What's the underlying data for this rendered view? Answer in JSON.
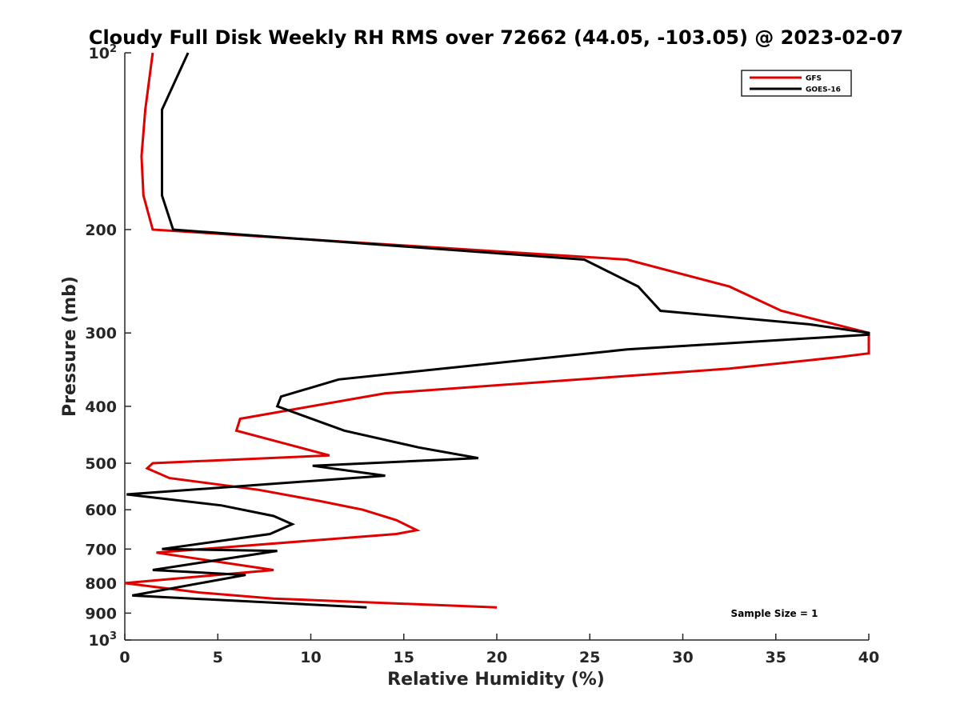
{
  "chart_data": {
    "type": "line",
    "title": "Cloudy Full Disk Weekly RH RMS over 72662 (44.05, -103.05) @ 2023-02-07",
    "xlabel": "Relative Humidity (%)",
    "ylabel": "Pressure (mb)",
    "xlim": [
      0,
      40
    ],
    "ylim": [
      100,
      1000
    ],
    "y_scale": "log",
    "y_reversed": true,
    "x_ticks": [
      0,
      5,
      10,
      15,
      20,
      25,
      30,
      35,
      40
    ],
    "y_ticks": [
      {
        "value": 100,
        "base": "10",
        "exp": "2"
      },
      {
        "value": 200,
        "label": "200"
      },
      {
        "value": 300,
        "label": "300"
      },
      {
        "value": 400,
        "label": "400"
      },
      {
        "value": 500,
        "label": "500"
      },
      {
        "value": 600,
        "label": "600"
      },
      {
        "value": 700,
        "label": "700"
      },
      {
        "value": 800,
        "label": "800"
      },
      {
        "value": 900,
        "label": "900"
      },
      {
        "value": 1000,
        "base": "10",
        "exp": "3"
      }
    ],
    "grid": false,
    "legend_position": "top-right",
    "annotation": "Sample Size = 1",
    "series": [
      {
        "name": "GFS",
        "color": "#e00000",
        "points": [
          [
            1.5,
            100
          ],
          [
            1.1,
            125
          ],
          [
            0.9,
            150
          ],
          [
            1.0,
            175
          ],
          [
            1.5,
            200
          ],
          [
            27.0,
            225
          ],
          [
            32.5,
            250
          ],
          [
            35.3,
            275
          ],
          [
            40.0,
            300
          ],
          [
            40.0,
            325
          ],
          [
            38.3,
            330
          ],
          [
            32.5,
            345
          ],
          [
            14.0,
            380
          ],
          [
            6.2,
            420
          ],
          [
            6.0,
            440
          ],
          [
            11.0,
            485
          ],
          [
            1.5,
            500
          ],
          [
            1.2,
            510
          ],
          [
            2.4,
            530
          ],
          [
            7.2,
            555
          ],
          [
            10.5,
            580
          ],
          [
            12.8,
            600
          ],
          [
            14.6,
            625
          ],
          [
            15.7,
            650
          ],
          [
            14.6,
            660
          ],
          [
            1.7,
            710
          ],
          [
            8.0,
            760
          ],
          [
            0.0,
            800
          ],
          [
            4.0,
            830
          ],
          [
            8.0,
            850
          ],
          [
            20.0,
            880
          ]
        ]
      },
      {
        "name": "GOES-16",
        "color": "#000000",
        "points": [
          [
            3.4,
            100
          ],
          [
            2.0,
            125
          ],
          [
            2.0,
            150
          ],
          [
            2.0,
            175
          ],
          [
            2.6,
            200
          ],
          [
            24.7,
            225
          ],
          [
            27.6,
            250
          ],
          [
            28.8,
            275
          ],
          [
            36.8,
            290
          ],
          [
            40.0,
            300
          ],
          [
            40.0,
            302
          ],
          [
            27.0,
            320
          ],
          [
            19.0,
            340
          ],
          [
            11.5,
            360
          ],
          [
            8.4,
            385
          ],
          [
            8.2,
            400
          ],
          [
            11.8,
            440
          ],
          [
            15.8,
            470
          ],
          [
            19.0,
            490
          ],
          [
            10.1,
            505
          ],
          [
            14.0,
            525
          ],
          [
            0.1,
            565
          ],
          [
            5.2,
            590
          ],
          [
            8.0,
            615
          ],
          [
            9.0,
            635
          ],
          [
            7.8,
            660
          ],
          [
            2.0,
            700
          ],
          [
            8.2,
            705
          ],
          [
            1.5,
            760
          ],
          [
            6.5,
            775
          ],
          [
            0.4,
            840
          ],
          [
            13.0,
            880
          ]
        ]
      }
    ]
  }
}
